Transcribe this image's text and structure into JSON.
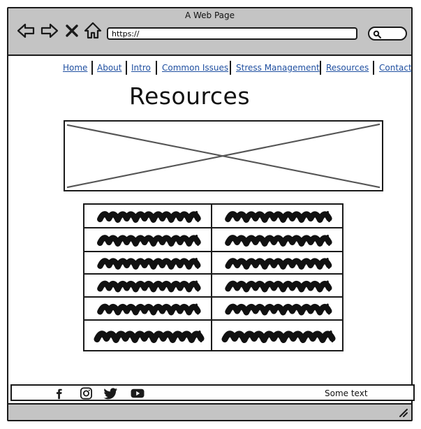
{
  "browser": {
    "title": "A Web Page",
    "url": "https://",
    "icons": [
      "back-arrow-icon",
      "forward-arrow-icon",
      "close-x-icon",
      "home-icon",
      "search-icon"
    ]
  },
  "nav": {
    "links": [
      "Home",
      "About",
      "Intro",
      "Common Issues",
      "Stress Management",
      "Resources",
      "Contact"
    ]
  },
  "page": {
    "title": "Resources",
    "image_placeholder": "image-placeholder"
  },
  "table": {
    "rows": 6,
    "columns": 2,
    "content": "scribbled placeholder text"
  },
  "footer": {
    "social_icons": [
      "facebook-icon",
      "instagram-icon",
      "twitter-icon",
      "youtube-icon"
    ],
    "text": "Some text"
  },
  "colors": {
    "chrome": "#c4c4c4",
    "link": "#1f4fa0",
    "ink": "#1a1a1a"
  }
}
